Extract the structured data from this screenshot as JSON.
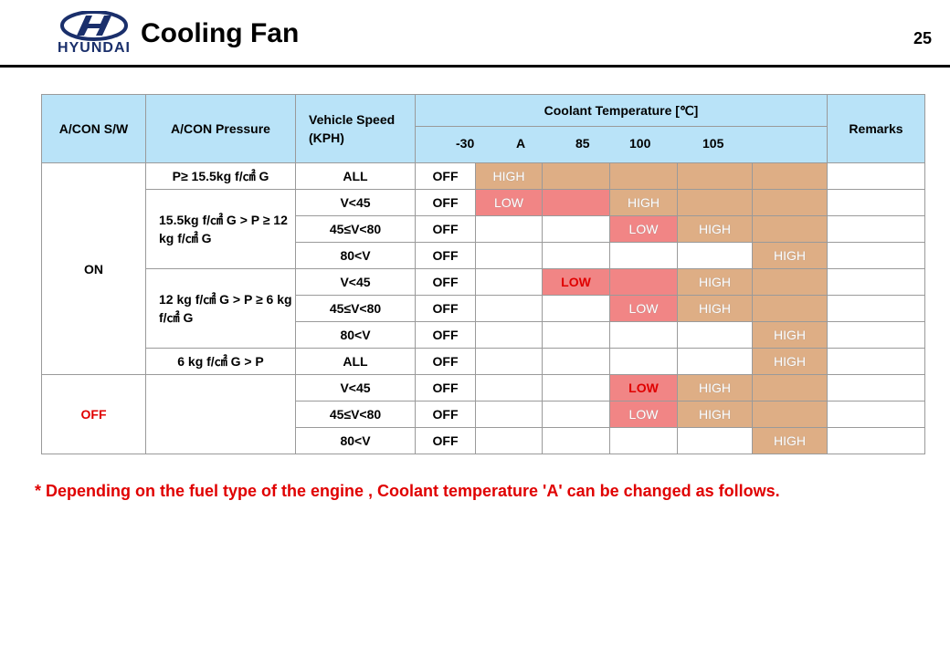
{
  "header": {
    "logo_text": "HYUNDAI",
    "title": "Cooling Fan",
    "page_number": "25"
  },
  "table": {
    "headers": {
      "acon_sw": "A/CON S/W",
      "acon_pressure": "A/CON Pressure",
      "vehicle_speed": "Vehicle Speed (KPH)",
      "coolant_temp": "Coolant Temperature [℃]",
      "remarks": "Remarks",
      "temps": [
        "-30",
        "A",
        "85",
        "100",
        "105"
      ]
    },
    "groups": {
      "on_label": "ON",
      "off_label": "OFF",
      "p1": "P≥ 15.5kg f/㎠ G",
      "p2": "15.5kg f/㎠ G > P ≥ 12 kg f/㎠ G",
      "p3": "12 kg f/㎠ G > P ≥ 6 kg f/㎠ G",
      "p4": "6 kg f/㎠ G  > P"
    },
    "rows": [
      {
        "speed": "ALL",
        "state": "OFF"
      },
      {
        "speed": "V<45",
        "state": "OFF"
      },
      {
        "speed": "45≤V<80",
        "state": "OFF"
      },
      {
        "speed": "80<V",
        "state": "OFF"
      },
      {
        "speed": "V<45",
        "state": "OFF"
      },
      {
        "speed": "45≤V<80",
        "state": "OFF"
      },
      {
        "speed": "80<V",
        "state": "OFF"
      },
      {
        "speed": "ALL",
        "state": "OFF"
      },
      {
        "speed": "V<45",
        "state": "OFF"
      },
      {
        "speed": "45≤V<80",
        "state": "OFF"
      },
      {
        "speed": "80<V",
        "state": "OFF"
      }
    ],
    "labels": {
      "high": "HIGH",
      "low": "LOW"
    },
    "colors": {
      "header_bg": "#b9e3f8",
      "high_band": "#deae85",
      "low_band": "#f18585",
      "accent_red": "#e00000"
    }
  },
  "footnote": "* Depending on the fuel type of the engine , Coolant temperature 'A' can be changed as follows."
}
